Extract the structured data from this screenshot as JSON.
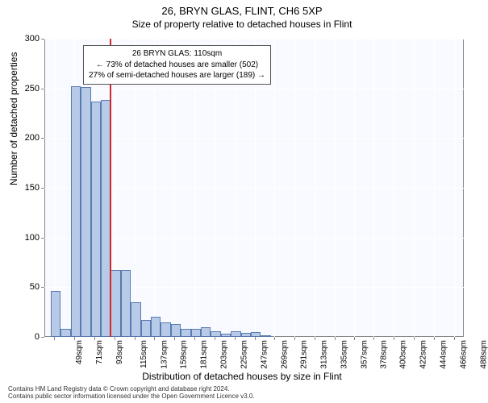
{
  "titles": {
    "main": "26, BRYN GLAS, FLINT, CH6 5XP",
    "sub": "Size of property relative to detached houses in Flint"
  },
  "chart": {
    "type": "histogram",
    "background_color": "#f8faff",
    "grid_color": "#ffffff",
    "border_color": "#888888",
    "bar_fill": "#b7cbe8",
    "bar_stroke": "#5a7bb0",
    "ref_line_color": "#d02828",
    "ylim": [
      0,
      300
    ],
    "yticks": [
      0,
      50,
      100,
      150,
      200,
      250,
      300
    ],
    "ylabel": "Number of detached properties",
    "xlabel": "Distribution of detached houses by size in Flint",
    "xticks": [
      49,
      71,
      93,
      115,
      137,
      159,
      181,
      203,
      225,
      247,
      269,
      291,
      313,
      335,
      357,
      378,
      400,
      422,
      444,
      466,
      488
    ],
    "xtick_suffix": "sqm",
    "x_range": [
      38,
      499
    ],
    "ref_line_x": 110,
    "bars": [
      {
        "x0": 45,
        "x1": 56,
        "y": 46
      },
      {
        "x0": 56,
        "x1": 67,
        "y": 8
      },
      {
        "x0": 67,
        "x1": 78,
        "y": 252
      },
      {
        "x0": 78,
        "x1": 89,
        "y": 251
      },
      {
        "x0": 89,
        "x1": 100,
        "y": 237
      },
      {
        "x0": 100,
        "x1": 111,
        "y": 238
      },
      {
        "x0": 111,
        "x1": 122,
        "y": 67
      },
      {
        "x0": 122,
        "x1": 133,
        "y": 67
      },
      {
        "x0": 133,
        "x1": 144,
        "y": 35
      },
      {
        "x0": 144,
        "x1": 155,
        "y": 17
      },
      {
        "x0": 155,
        "x1": 166,
        "y": 20
      },
      {
        "x0": 166,
        "x1": 177,
        "y": 15
      },
      {
        "x0": 177,
        "x1": 188,
        "y": 13
      },
      {
        "x0": 188,
        "x1": 199,
        "y": 8
      },
      {
        "x0": 199,
        "x1": 210,
        "y": 8
      },
      {
        "x0": 210,
        "x1": 221,
        "y": 10
      },
      {
        "x0": 221,
        "x1": 232,
        "y": 6
      },
      {
        "x0": 232,
        "x1": 243,
        "y": 3
      },
      {
        "x0": 243,
        "x1": 254,
        "y": 6
      },
      {
        "x0": 254,
        "x1": 265,
        "y": 4
      },
      {
        "x0": 265,
        "x1": 276,
        "y": 5
      },
      {
        "x0": 276,
        "x1": 287,
        "y": 2
      }
    ],
    "annotation": {
      "line1": "26 BRYN GLAS: 110sqm",
      "line2": "← 73% of detached houses are smaller (502)",
      "line3": "27% of semi-detached houses are larger (189) →"
    }
  },
  "footer": {
    "line1": "Contains HM Land Registry data © Crown copyright and database right 2024.",
    "line2": "Contains public sector information licensed under the Open Government Licence v3.0."
  }
}
